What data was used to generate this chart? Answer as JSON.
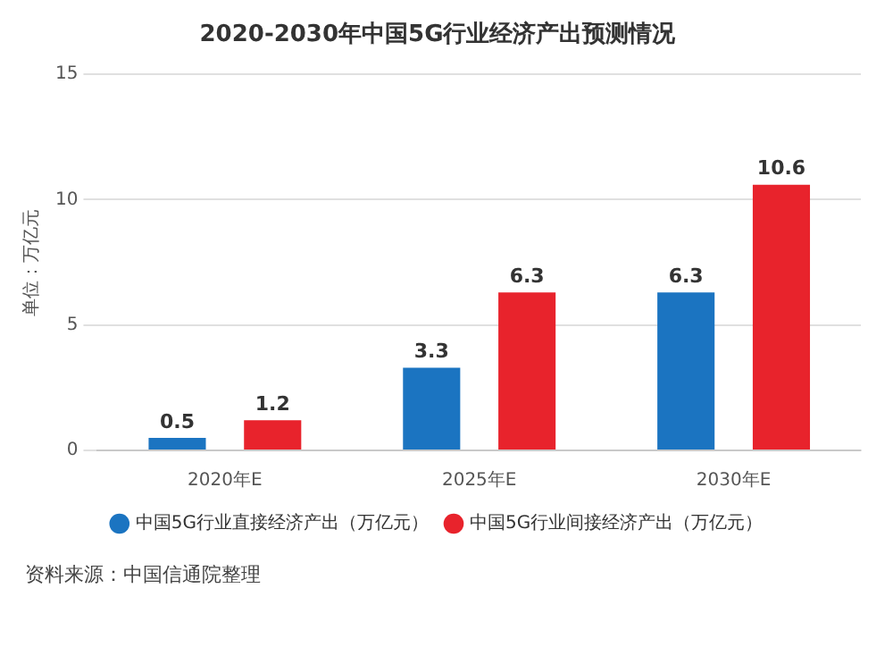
{
  "chart_data": {
    "type": "bar",
    "title": "2020-2030年中国5G行业经济产出预测情况",
    "ylabel": "单位：万亿元",
    "categories": [
      "2020年E",
      "2025年E",
      "2030年E"
    ],
    "series": [
      {
        "name": "中国5G行业直接经济产出（万亿元）",
        "color": "#1b74c1",
        "values": [
          0.5,
          3.3,
          6.3
        ]
      },
      {
        "name": "中国5G行业间接经济产出（万亿元）",
        "color": "#e8232c",
        "values": [
          1.2,
          6.3,
          10.6
        ]
      }
    ],
    "ylim": [
      0,
      15
    ],
    "yticks": [
      0,
      5,
      10,
      15
    ],
    "grid": "y",
    "legend": "bottom",
    "data_labels": true,
    "annotations": [
      "资料来源：中国信通院整理"
    ]
  }
}
